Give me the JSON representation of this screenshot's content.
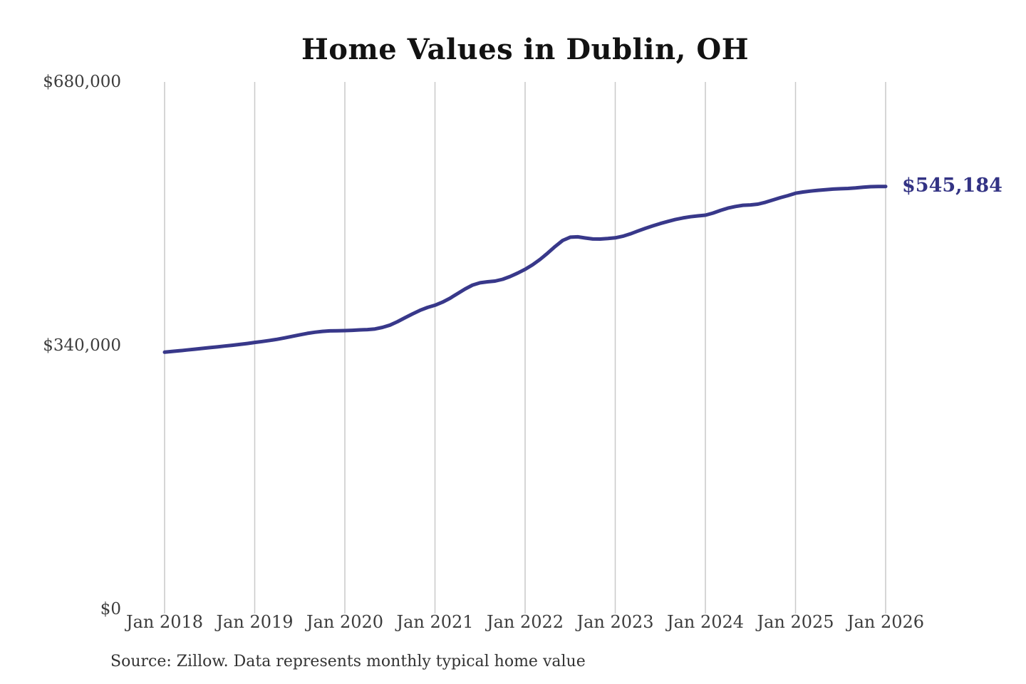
{
  "title": "Home Values in Dublin, OH",
  "end_label": "$545,184",
  "source": "Source: Zillow. Data represents monthly typical home value",
  "colors": {
    "line": "#38388a",
    "end_label": "#333384",
    "grid": "#c9c9c9",
    "axis_text": "#3d3d3d",
    "title_text": "#121212",
    "source_text": "#333333",
    "background": "#ffffff"
  },
  "y_axis": {
    "ticks": [
      {
        "label": "$680,000",
        "value": 680000
      },
      {
        "label": "$340,000",
        "value": 340000
      },
      {
        "label": "$0",
        "value": 0
      }
    ]
  },
  "x_axis": {
    "ticks": [
      "Jan 2018",
      "Jan 2019",
      "Jan 2020",
      "Jan 2021",
      "Jan 2022",
      "Jan 2023",
      "Jan 2024",
      "Jan 2025",
      "Jan 2026"
    ]
  },
  "chart_data": {
    "type": "line",
    "title": "Home Values in Dublin, OH",
    "xlabel": "",
    "ylabel": "",
    "ylim": [
      0,
      680000
    ],
    "x_start": "2018-01",
    "x_end": "2026-01",
    "frequency": "monthly",
    "x_tick_labels": [
      "Jan 2018",
      "Jan 2019",
      "Jan 2020",
      "Jan 2021",
      "Jan 2022",
      "Jan 2023",
      "Jan 2024",
      "Jan 2025",
      "Jan 2026"
    ],
    "y_tick_labels": [
      "$0",
      "$340,000",
      "$680,000"
    ],
    "grid": "vertical-only",
    "legend": "none",
    "end_value": 545184,
    "end_value_label": "$545,184",
    "series": [
      {
        "name": "Monthly typical home value",
        "values": [
          331500,
          332400,
          333300,
          334300,
          335300,
          336300,
          337300,
          338300,
          339400,
          340400,
          341500,
          342700,
          344000,
          345200,
          346600,
          348100,
          349900,
          351900,
          353900,
          355700,
          357200,
          358300,
          358900,
          359100,
          359300,
          359700,
          360200,
          360600,
          361400,
          363400,
          366400,
          370800,
          375800,
          380800,
          385400,
          389200,
          392000,
          396000,
          401000,
          407000,
          413000,
          418000,
          421000,
          422200,
          423200,
          425500,
          429000,
          433500,
          438300,
          444200,
          451200,
          459200,
          467800,
          475500,
          479800,
          480200,
          478800,
          477500,
          477400,
          478000,
          478900,
          481000,
          484000,
          487700,
          491200,
          494400,
          497400,
          500100,
          502600,
          504600,
          506100,
          507200,
          508200,
          510800,
          514200,
          517300,
          519400,
          520900,
          521400,
          522400,
          524800,
          527800,
          530800,
          533400,
          536500,
          538000,
          539200,
          540200,
          541000,
          541800,
          542300,
          542600,
          543300,
          544200,
          544900,
          545100,
          545184
        ]
      }
    ]
  }
}
